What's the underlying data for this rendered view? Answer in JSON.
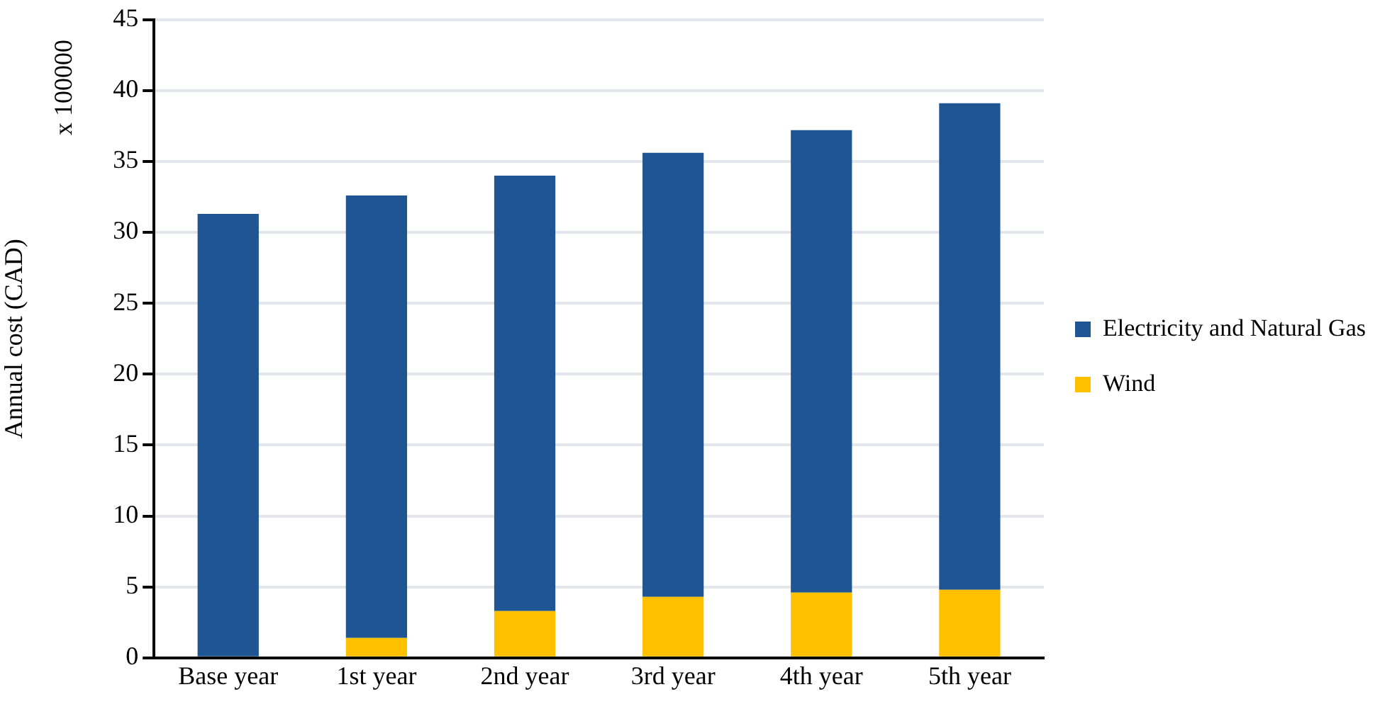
{
  "chart_data": {
    "type": "bar",
    "stacked": true,
    "ylabel": "Annual cost (CAD)",
    "annotations": [
      "x 100000"
    ],
    "categories": [
      "Base year",
      "1st year",
      "2nd year",
      "3rd year",
      "4th year",
      "5th year"
    ],
    "series": [
      {
        "name": "Wind",
        "color": "#ffc000",
        "values": [
          0,
          1.4,
          3.3,
          4.3,
          4.6,
          4.8
        ]
      },
      {
        "name": "Electricity and Natural Gas",
        "color": "#1f5592",
        "values": [
          31.3,
          31.2,
          30.7,
          31.3,
          32.6,
          34.3
        ]
      }
    ],
    "ylim": [
      0,
      45
    ],
    "yticks": [
      0,
      5,
      10,
      15,
      20,
      25,
      30,
      35,
      40,
      45
    ],
    "grid": "y",
    "legend": "right"
  }
}
